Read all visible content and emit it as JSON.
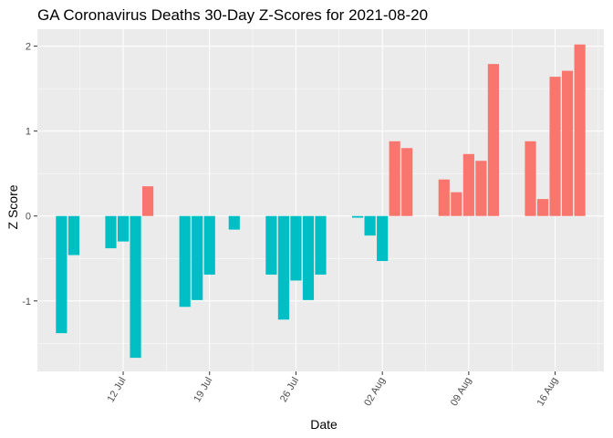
{
  "chart_data": {
    "type": "bar",
    "title": "GA Coronavirus Deaths 30-Day Z-Scores for 2021-08-20",
    "xlabel": "Date",
    "ylabel": "Z Score",
    "ylim": [
      -1.83,
      2.2
    ],
    "yticks": [
      -1,
      0,
      1,
      2
    ],
    "xticks": [
      {
        "label": "12 Jul",
        "day": 12
      },
      {
        "label": "19 Jul",
        "day": 19
      },
      {
        "label": "26 Jul",
        "day": 26
      },
      {
        "label": "02 Aug",
        "day": 33
      },
      {
        "label": "09 Aug",
        "day": 40
      },
      {
        "label": "16 Aug",
        "day": 47
      }
    ],
    "colors": {
      "positive": "#f8766d",
      "negative": "#00bfc4",
      "panel": "#ebebeb",
      "grid": "#ffffff"
    },
    "series": [
      {
        "date": "2021-07-07",
        "day": 7,
        "value": -1.38
      },
      {
        "date": "2021-07-08",
        "day": 8,
        "value": -0.46
      },
      {
        "date": "2021-07-09",
        "day": 9,
        "value": 0
      },
      {
        "date": "2021-07-10",
        "day": 10,
        "value": 0
      },
      {
        "date": "2021-07-11",
        "day": 11,
        "value": -0.38
      },
      {
        "date": "2021-07-12",
        "day": 12,
        "value": -0.3
      },
      {
        "date": "2021-07-13",
        "day": 13,
        "value": -1.67
      },
      {
        "date": "2021-07-14",
        "day": 14,
        "value": 0.35
      },
      {
        "date": "2021-07-15",
        "day": 15,
        "value": 0
      },
      {
        "date": "2021-07-16",
        "day": 16,
        "value": 0
      },
      {
        "date": "2021-07-17",
        "day": 17,
        "value": -1.07
      },
      {
        "date": "2021-07-18",
        "day": 18,
        "value": -0.99
      },
      {
        "date": "2021-07-19",
        "day": 19,
        "value": -0.69
      },
      {
        "date": "2021-07-20",
        "day": 20,
        "value": 0
      },
      {
        "date": "2021-07-21",
        "day": 21,
        "value": -0.16
      },
      {
        "date": "2021-07-22",
        "day": 22,
        "value": 0
      },
      {
        "date": "2021-07-23",
        "day": 23,
        "value": 0
      },
      {
        "date": "2021-07-24",
        "day": 24,
        "value": -0.69
      },
      {
        "date": "2021-07-25",
        "day": 25,
        "value": -1.22
      },
      {
        "date": "2021-07-26",
        "day": 26,
        "value": -0.76
      },
      {
        "date": "2021-07-27",
        "day": 27,
        "value": -0.99
      },
      {
        "date": "2021-07-28",
        "day": 28,
        "value": -0.69
      },
      {
        "date": "2021-07-29",
        "day": 29,
        "value": 0
      },
      {
        "date": "2021-07-30",
        "day": 30,
        "value": 0
      },
      {
        "date": "2021-07-31",
        "day": 31,
        "value": -0.02
      },
      {
        "date": "2021-08-01",
        "day": 32,
        "value": -0.23
      },
      {
        "date": "2021-08-02",
        "day": 33,
        "value": -0.53
      },
      {
        "date": "2021-08-03",
        "day": 34,
        "value": 0.88
      },
      {
        "date": "2021-08-04",
        "day": 35,
        "value": 0.8
      },
      {
        "date": "2021-08-05",
        "day": 36,
        "value": 0
      },
      {
        "date": "2021-08-06",
        "day": 37,
        "value": 0
      },
      {
        "date": "2021-08-07",
        "day": 38,
        "value": 0.43
      },
      {
        "date": "2021-08-08",
        "day": 39,
        "value": 0.28
      },
      {
        "date": "2021-08-09",
        "day": 40,
        "value": 0.73
      },
      {
        "date": "2021-08-10",
        "day": 41,
        "value": 0.65
      },
      {
        "date": "2021-08-11",
        "day": 42,
        "value": 1.79
      },
      {
        "date": "2021-08-12",
        "day": 43,
        "value": 0
      },
      {
        "date": "2021-08-13",
        "day": 44,
        "value": 0
      },
      {
        "date": "2021-08-14",
        "day": 45,
        "value": 0.88
      },
      {
        "date": "2021-08-15",
        "day": 46,
        "value": 0.2
      },
      {
        "date": "2021-08-16",
        "day": 47,
        "value": 1.64
      },
      {
        "date": "2021-08-17",
        "day": 48,
        "value": 1.71
      },
      {
        "date": "2021-08-18",
        "day": 49,
        "value": 2.02
      }
    ]
  }
}
